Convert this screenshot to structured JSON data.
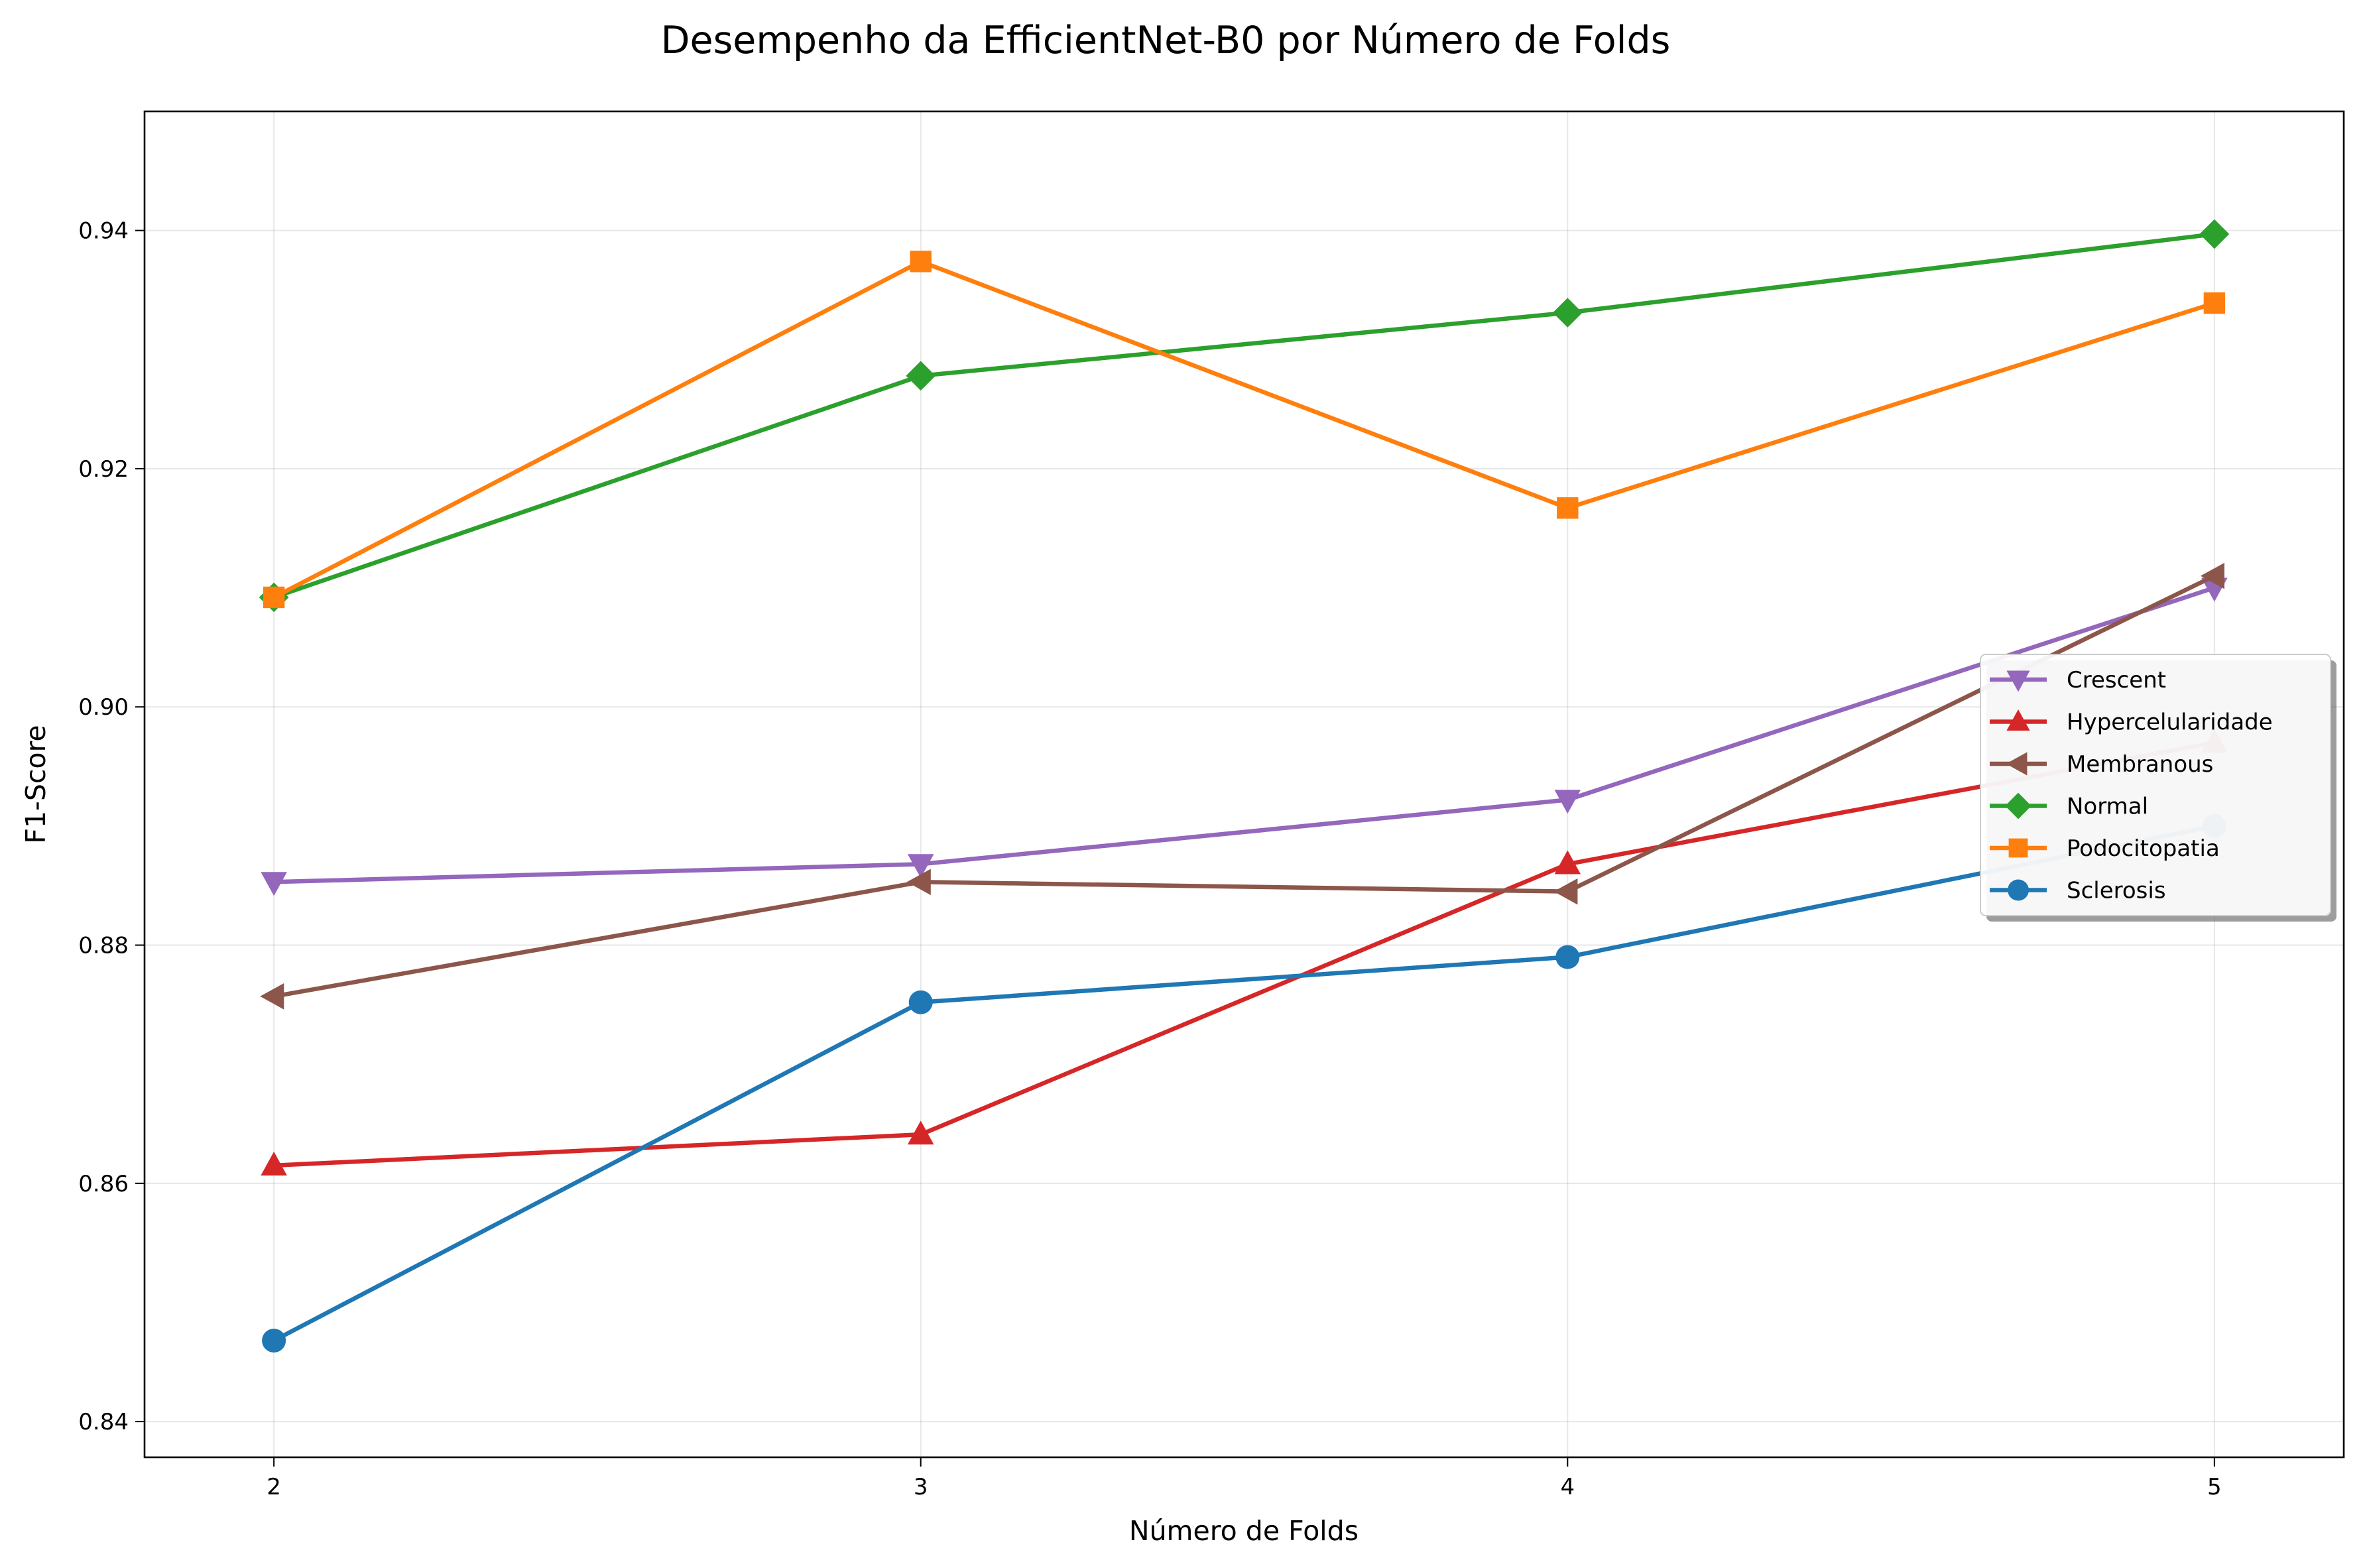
{
  "chart_data": {
    "type": "line",
    "title": "Desempenho da EfficientNet-B0 por Número de Folds",
    "xlabel": "Número de Folds",
    "ylabel": "F1-Score",
    "x": [
      2,
      3,
      4,
      5
    ],
    "x_ticks": [
      "2",
      "3",
      "4",
      "5"
    ],
    "xlim": [
      1.8,
      5.2
    ],
    "ylim": [
      0.837,
      0.95
    ],
    "y_ticks": [
      "0.84",
      "0.86",
      "0.88",
      "0.90",
      "0.92",
      "0.94"
    ],
    "grid": true,
    "legend_position": "center-right",
    "series": [
      {
        "name": "Crescent",
        "color": "#9467bd",
        "marker": "triangle-down",
        "values": [
          0.8853,
          0.8868,
          0.8922,
          0.91
        ]
      },
      {
        "name": "Hypercelularidade",
        "color": "#d62728",
        "marker": "triangle-up",
        "values": [
          0.8615,
          0.8641,
          0.8868,
          0.897
        ]
      },
      {
        "name": "Membranous",
        "color": "#8c564b",
        "marker": "triangle-left",
        "values": [
          0.8757,
          0.8853,
          0.8845,
          0.911
        ]
      },
      {
        "name": "Normal",
        "color": "#2ca02c",
        "marker": "diamond",
        "values": [
          0.9092,
          0.9278,
          0.9331,
          0.9397
        ]
      },
      {
        "name": "Podocitopatia",
        "color": "#ff7f0e",
        "marker": "square",
        "values": [
          0.9092,
          0.9374,
          0.9167,
          0.9339
        ]
      },
      {
        "name": "Sclerosis",
        "color": "#1f77b4",
        "marker": "circle",
        "values": [
          0.8468,
          0.8752,
          0.879,
          0.89
        ]
      }
    ]
  }
}
